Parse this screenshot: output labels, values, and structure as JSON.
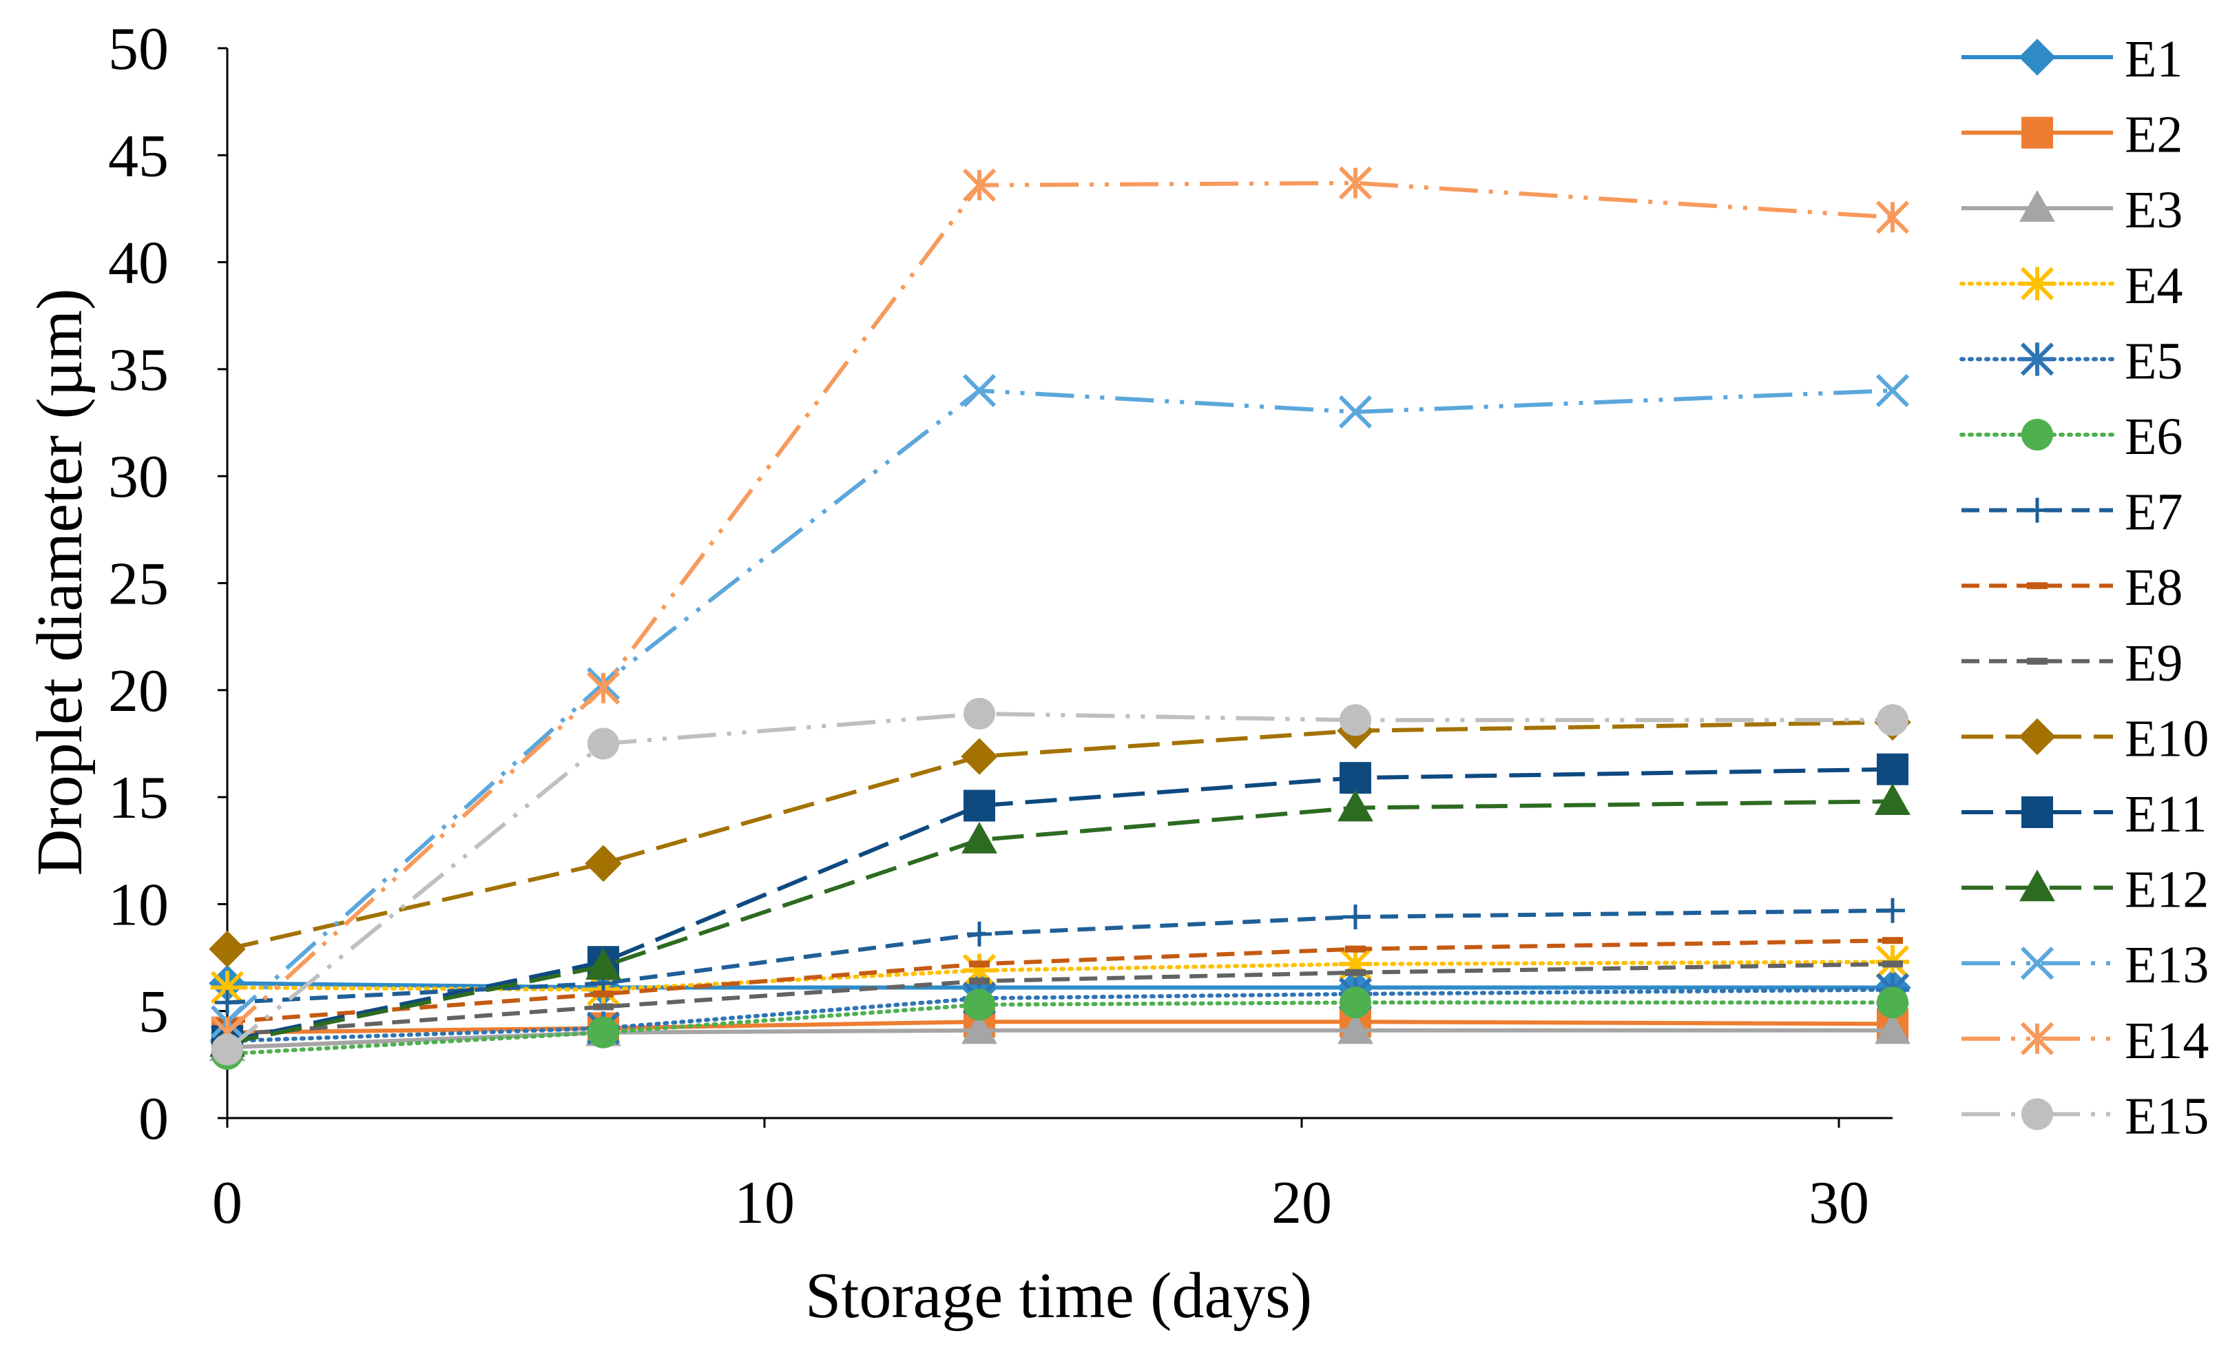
{
  "chart_data": {
    "type": "line",
    "title": "",
    "xlabel": "Storage time (days)",
    "ylabel": "Droplet diameter (µm)",
    "xlim": [
      0,
      31
    ],
    "ylim": [
      0,
      50
    ],
    "x_ticks": [
      0,
      10,
      20,
      30
    ],
    "x_tick_labels": [
      "0",
      "10",
      "20",
      "30"
    ],
    "y_ticks": [
      0,
      5,
      10,
      15,
      20,
      25,
      30,
      35,
      40,
      45,
      50
    ],
    "y_tick_labels": [
      "0",
      "5",
      "10",
      "15",
      "20",
      "25",
      "30",
      "35",
      "40",
      "45",
      "50"
    ],
    "grid": false,
    "legend_position": "right",
    "x": [
      0,
      7,
      14,
      21,
      31
    ],
    "series": [
      {
        "name": "E1",
        "values": [
          6.3,
          6.1,
          6.1,
          6.1,
          6.1
        ],
        "color": "#2E8BC8",
        "marker": "diamond",
        "dash": "solid"
      },
      {
        "name": "E2",
        "values": [
          4.0,
          4.2,
          4.5,
          4.5,
          4.4
        ],
        "color": "#ED7D31",
        "marker": "square",
        "dash": "solid"
      },
      {
        "name": "E3",
        "values": [
          3.3,
          4.0,
          4.1,
          4.1,
          4.1
        ],
        "color": "#A5A5A5",
        "marker": "triangle",
        "dash": "solid"
      },
      {
        "name": "E4",
        "values": [
          6.1,
          6.0,
          6.9,
          7.2,
          7.3
        ],
        "color": "#FFC000",
        "marker": "star",
        "dash": "dot"
      },
      {
        "name": "E5",
        "values": [
          3.6,
          4.2,
          5.6,
          5.8,
          6.0
        ],
        "color": "#2E74B5",
        "marker": "star",
        "dash": "dot"
      },
      {
        "name": "E6",
        "values": [
          3.0,
          4.0,
          5.3,
          5.4,
          5.4
        ],
        "color": "#4EB04E",
        "marker": "circle",
        "dash": "dot"
      },
      {
        "name": "E7",
        "values": [
          5.4,
          6.3,
          8.6,
          9.4,
          9.7
        ],
        "color": "#1F5F99",
        "marker": "plus",
        "dash": "dash"
      },
      {
        "name": "E8",
        "values": [
          4.5,
          5.8,
          7.2,
          7.9,
          8.3
        ],
        "color": "#C55A11",
        "marker": "minus",
        "dash": "dash"
      },
      {
        "name": "E9",
        "values": [
          3.9,
          5.2,
          6.4,
          6.8,
          7.2
        ],
        "color": "#636363",
        "marker": "minus",
        "dash": "dash"
      },
      {
        "name": "E10",
        "values": [
          7.9,
          11.9,
          16.9,
          18.1,
          18.5
        ],
        "color": "#A37200",
        "marker": "diamond",
        "dash": "longdash"
      },
      {
        "name": "E11",
        "values": [
          3.6,
          7.3,
          14.6,
          15.9,
          16.3
        ],
        "color": "#0E4A80",
        "marker": "square",
        "dash": "longdash"
      },
      {
        "name": "E12",
        "values": [
          3.5,
          7.1,
          13.0,
          14.5,
          14.8
        ],
        "color": "#2D6B21",
        "marker": "triangle",
        "dash": "longdash"
      },
      {
        "name": "E13",
        "values": [
          4.5,
          20.3,
          34.0,
          33.0,
          34.0
        ],
        "color": "#5BA7DC",
        "marker": "x",
        "dash": "longdashdotdot"
      },
      {
        "name": "E14",
        "values": [
          4.0,
          20.1,
          43.6,
          43.7,
          42.1
        ],
        "color": "#F79A5C",
        "marker": "asterisk",
        "dash": "longdashdotdot"
      },
      {
        "name": "E15",
        "values": [
          3.2,
          17.5,
          18.9,
          18.6,
          18.6
        ],
        "color": "#BFBFBF",
        "marker": "circle",
        "dash": "longdashdotdot"
      }
    ]
  }
}
